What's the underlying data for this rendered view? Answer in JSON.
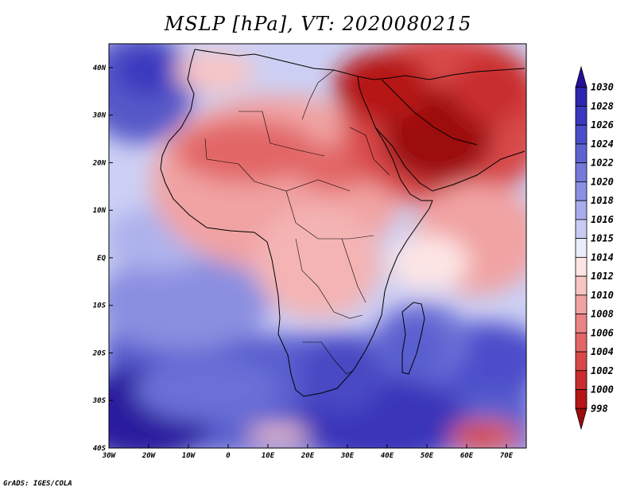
{
  "title": "MSLP [hPa], VT: 2020080215",
  "footer": "GrADS: IGES/COLA",
  "map": {
    "lon_range": [
      -30,
      75
    ],
    "lat_range": [
      -40,
      45
    ],
    "x_ticks": [
      "30W",
      "20W",
      "10W",
      "0",
      "10E",
      "20E",
      "30E",
      "40E",
      "50E",
      "60E",
      "70E"
    ],
    "y_ticks": [
      "40N",
      "30N",
      "20N",
      "10N",
      "EQ",
      "10S",
      "20S",
      "30S",
      "40S"
    ]
  },
  "colorbar": {
    "levels": [
      "1030",
      "1028",
      "1026",
      "1024",
      "1022",
      "1020",
      "1018",
      "1016",
      "1015",
      "1014",
      "1012",
      "1010",
      "1008",
      "1006",
      "1004",
      "1002",
      "1000",
      "998"
    ],
    "colors": [
      "#26119a",
      "#2d25ad",
      "#3a38bf",
      "#4c4dca",
      "#5f63d2",
      "#7579da",
      "#8c90e2",
      "#a8aceb",
      "#c8cbf4",
      "#ecedfb",
      "#fde5e5",
      "#f8c4c4",
      "#f1a3a3",
      "#ea8383",
      "#e26666",
      "#d84848",
      "#c92d2d",
      "#b51616",
      "#9c0c0c"
    ]
  }
}
